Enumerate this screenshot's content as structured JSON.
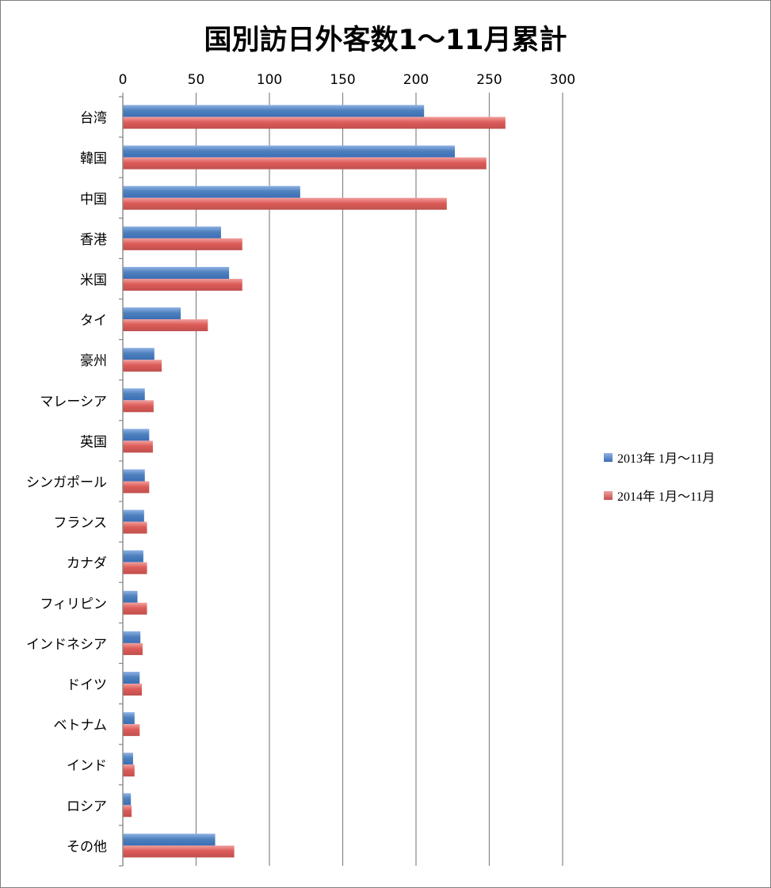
{
  "chart_data": {
    "type": "bar",
    "orientation": "horizontal",
    "title": "国別訪日外客数1～11月累計",
    "categories": [
      "台湾",
      "韓国",
      "中国",
      "香港",
      "米国",
      "タイ",
      "豪州",
      "マレーシア",
      "英国",
      "シンガポール",
      "フランス",
      "カナダ",
      "フィリピン",
      "インドネシア",
      "ドイツ",
      "ベトナム",
      "インド",
      "ロシア",
      "その他"
    ],
    "series": [
      {
        "name": "2013年 1月～11月",
        "color": "#4f81bd",
        "values": [
          205.5,
          226.5,
          121,
          67,
          72.5,
          39.5,
          21.5,
          15,
          18,
          15,
          14.5,
          14,
          10,
          12,
          11.5,
          8,
          7,
          5.5,
          63
        ]
      },
      {
        "name": "2014年 1月～11月",
        "color": "#c0504d",
        "values": [
          261,
          248,
          221,
          81.5,
          81.5,
          58,
          26.5,
          21,
          20.5,
          18,
          16.5,
          16.5,
          16.5,
          13.5,
          13,
          11.5,
          8,
          6,
          76
        ]
      }
    ],
    "xlim": [
      0,
      300
    ],
    "xticks": [
      "0",
      "50",
      "100",
      "150",
      "200",
      "250",
      "300"
    ],
    "xaxis_position": "top",
    "grid": true,
    "legend_position": "right"
  }
}
